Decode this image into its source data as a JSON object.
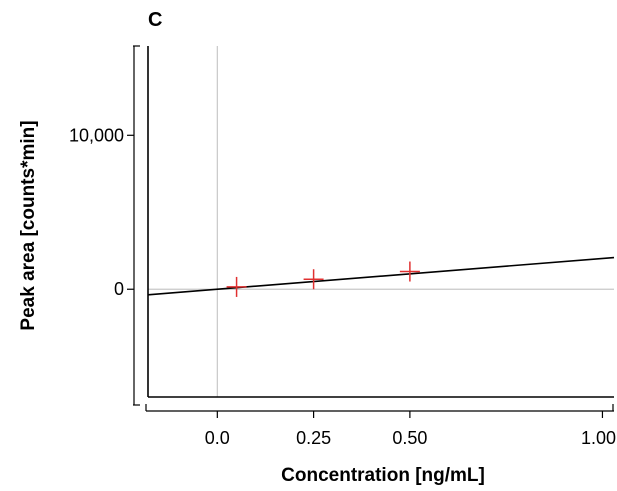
{
  "chart_data": {
    "type": "scatter",
    "panel_label": "C",
    "title": "",
    "xlabel": "Concentration [ng/mL]",
    "ylabel": "Peak area [counts*min]",
    "xlim": [
      -0.18,
      1.03
    ],
    "ylim": [
      -7000,
      15800
    ],
    "x_ticks": [
      0.0,
      0.25,
      0.5,
      1.0
    ],
    "x_tick_labels": [
      "0.0",
      "0.25",
      "0.50",
      "1.00"
    ],
    "y_ticks": [
      0,
      10000
    ],
    "y_tick_labels": [
      "0",
      "10,000"
    ],
    "reference_lines": {
      "x": 0,
      "y": 0,
      "color": "#c8c8c8"
    },
    "series": [
      {
        "values": [
          {
            "x": 0.05,
            "y": 150
          },
          {
            "x": 0.25,
            "y": 650
          },
          {
            "x": 0.5,
            "y": 1150
          }
        ],
        "marker": "plus",
        "color": "#e03030"
      }
    ],
    "fit_line": {
      "intercept": 0,
      "slope": 2000,
      "color": "#000000"
    },
    "grid": false
  }
}
